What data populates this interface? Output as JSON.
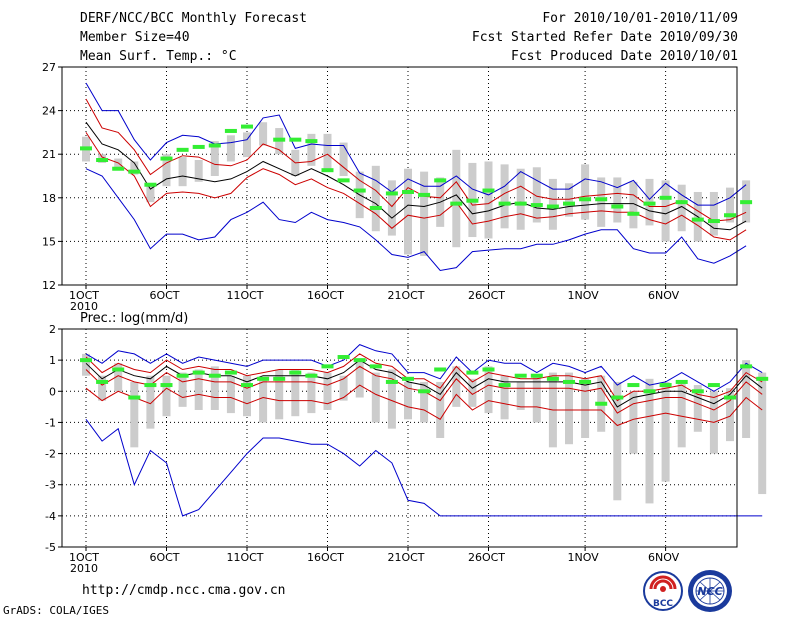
{
  "header": {
    "title": "DERF/NCC/BCC Monthly Forecast",
    "member_size": "Member Size=40",
    "variable": "Mean Surf. Temp.: °C",
    "period": "For 2010/10/01-2010/11/09",
    "started": "Fcst Started Refer Date 2010/09/30",
    "produced": "Fcst Produced Date 2010/10/01"
  },
  "footer": {
    "url": "http://cmdp.ncc.cma.gov.cn",
    "credit": "GrADS: COLA/IGES",
    "logo1_text": "BCC",
    "logo2_text": "NCC"
  },
  "colors": {
    "max_min": "#0000cc",
    "spread": "#cc0000",
    "mean": "#000000",
    "box": "#cccccc",
    "obs": "#33ee33"
  },
  "chart_data": [
    {
      "type": "line",
      "title": "Mean Surf. Temp.: °C",
      "x_days": 40,
      "xtick_labels": [
        "1OCT",
        "6OCT",
        "11OCT",
        "16OCT",
        "21OCT",
        "26OCT",
        "1NOV",
        "6NOV"
      ],
      "xtick_days": [
        1,
        6,
        11,
        16,
        21,
        26,
        32,
        37
      ],
      "x_sublabel": "2010",
      "ylim": [
        12,
        27
      ],
      "yticks": [
        12,
        15,
        18,
        21,
        24,
        27
      ],
      "max": [
        25.9,
        24.0,
        24.0,
        22.0,
        20.6,
        21.8,
        22.3,
        22.2,
        21.7,
        21.8,
        22.0,
        23.5,
        23.7,
        21.4,
        21.7,
        21.6,
        21.6,
        19.7,
        19.2,
        18.4,
        19.3,
        18.8,
        18.8,
        19.5,
        18.6,
        18.2,
        18.8,
        19.8,
        19.2,
        18.6,
        18.6,
        19.3,
        19.1,
        18.7,
        19.2,
        17.9,
        19.0,
        18.2,
        17.5,
        17.5,
        18.0,
        18.9
      ],
      "upper": [
        24.8,
        22.8,
        22.5,
        21.3,
        19.6,
        20.4,
        20.9,
        20.8,
        20.3,
        20.2,
        20.6,
        21.7,
        21.3,
        20.4,
        20.5,
        21.0,
        20.1,
        19.2,
        18.5,
        17.4,
        18.7,
        18.1,
        18.0,
        19.1,
        17.5,
        17.6,
        18.3,
        18.8,
        18.1,
        17.9,
        17.9,
        18.1,
        18.2,
        18.3,
        18.2,
        17.4,
        17.4,
        17.8,
        17.1,
        16.4,
        16.5,
        17.0
      ],
      "mean": [
        23.2,
        21.7,
        21.3,
        20.4,
        18.6,
        19.3,
        19.5,
        19.3,
        19.1,
        19.3,
        19.8,
        20.5,
        20.0,
        19.5,
        20.0,
        19.5,
        18.9,
        18.2,
        17.6,
        16.6,
        17.5,
        17.4,
        17.7,
        18.2,
        16.9,
        17.1,
        17.5,
        17.7,
        17.3,
        17.2,
        17.4,
        17.5,
        17.6,
        17.6,
        17.6,
        17.1,
        16.9,
        17.4,
        16.7,
        15.9,
        15.8,
        16.4
      ],
      "lower": [
        22.5,
        20.8,
        20.4,
        19.5,
        17.4,
        18.3,
        18.4,
        18.3,
        18.0,
        18.3,
        19.4,
        20.0,
        19.6,
        18.9,
        19.3,
        18.7,
        18.3,
        17.6,
        16.9,
        15.9,
        16.8,
        16.6,
        16.8,
        17.7,
        16.2,
        16.4,
        16.7,
        16.9,
        16.6,
        16.7,
        16.9,
        17.0,
        17.1,
        17.0,
        17.0,
        16.5,
        16.2,
        16.8,
        16.1,
        15.3,
        15.1,
        15.8
      ],
      "min": [
        20.0,
        19.5,
        18.0,
        16.5,
        14.5,
        15.5,
        15.5,
        15.1,
        15.3,
        16.5,
        17.0,
        17.7,
        16.5,
        16.3,
        17.0,
        16.5,
        16.3,
        16.0,
        15.1,
        14.1,
        13.9,
        14.3,
        13.0,
        13.2,
        14.3,
        14.4,
        14.5,
        14.5,
        14.8,
        14.8,
        15.1,
        15.5,
        15.8,
        15.8,
        14.5,
        14.2,
        14.2,
        15.3,
        13.8,
        13.5,
        14.0,
        14.7
      ],
      "box_high": [
        22.2,
        21.0,
        20.7,
        20.5,
        19.0,
        21.0,
        20.8,
        20.6,
        21.9,
        22.3,
        22.5,
        23.2,
        22.8,
        21.3,
        22.4,
        22.4,
        21.8,
        19.8,
        20.2,
        19.2,
        20.0,
        19.8,
        19.4,
        21.3,
        20.4,
        20.5,
        20.3,
        20.0,
        20.1,
        19.3,
        19.0,
        20.3,
        19.4,
        19.4,
        19.1,
        19.3,
        19.2,
        18.9,
        18.4,
        18.4,
        18.7,
        19.2
      ],
      "box_low": [
        20.5,
        20.4,
        20.0,
        19.6,
        17.7,
        18.8,
        18.8,
        19.1,
        19.5,
        20.5,
        20.8,
        21.6,
        21.0,
        19.5,
        20.2,
        19.9,
        19.5,
        16.6,
        15.7,
        15.4,
        14.1,
        14.0,
        16.0,
        14.6,
        15.3,
        15.2,
        15.9,
        15.8,
        16.3,
        15.8,
        16.7,
        16.5,
        16.0,
        16.3,
        15.9,
        16.1,
        15.0,
        15.7,
        15.0,
        15.4,
        16.3,
        16.3
      ],
      "obs": [
        21.4,
        20.6,
        20.0,
        19.8,
        18.9,
        20.7,
        21.3,
        21.5,
        21.6,
        22.6,
        22.9,
        null,
        22.0,
        22.0,
        21.9,
        19.9,
        19.2,
        18.5,
        17.3,
        18.3,
        18.4,
        18.2,
        19.2,
        17.6,
        17.8,
        18.5,
        17.6,
        17.6,
        17.5,
        17.4,
        17.6,
        17.9,
        17.9,
        17.4,
        16.9,
        17.6,
        18.0,
        17.7,
        16.5,
        16.4,
        16.8,
        17.7
      ]
    },
    {
      "type": "line",
      "title": "Prec.: log(mm/d)",
      "x_days": 40,
      "xtick_labels": [
        "1OCT",
        "6OCT",
        "11OCT",
        "16OCT",
        "21OCT",
        "26OCT",
        "1NOV",
        "6NOV"
      ],
      "xtick_days": [
        1,
        6,
        11,
        16,
        21,
        26,
        32,
        37
      ],
      "x_sublabel": "2010",
      "ylim": [
        -5,
        2
      ],
      "yticks": [
        -5,
        -4,
        -3,
        -2,
        -1,
        0,
        1,
        2
      ],
      "max": [
        1.2,
        0.9,
        1.3,
        1.2,
        0.9,
        1.2,
        0.9,
        1.1,
        1.0,
        0.9,
        0.8,
        1.0,
        1.0,
        1.0,
        1.0,
        0.8,
        1.0,
        1.5,
        1.3,
        1.2,
        0.6,
        0.6,
        0.4,
        1.1,
        0.6,
        1.0,
        0.9,
        0.9,
        0.6,
        0.9,
        0.8,
        0.6,
        0.8,
        0.2,
        0.5,
        0.2,
        0.3,
        0.6,
        0.3,
        0.0,
        0.3,
        0.9,
        0.6
      ],
      "upper": [
        1.1,
        0.6,
        0.9,
        0.7,
        0.6,
        1.0,
        0.7,
        0.8,
        0.7,
        0.7,
        0.5,
        0.6,
        0.7,
        0.7,
        0.7,
        0.6,
        0.8,
        1.2,
        0.9,
        0.8,
        0.4,
        0.4,
        0.1,
        0.8,
        0.3,
        0.6,
        0.5,
        0.4,
        0.4,
        0.5,
        0.5,
        0.4,
        0.5,
        -0.3,
        0.0,
        0.0,
        0.1,
        0.2,
        -0.1,
        -0.2,
        0.0,
        0.6,
        0.3
      ],
      "mean": [
        0.9,
        0.4,
        0.7,
        0.5,
        0.4,
        0.8,
        0.5,
        0.6,
        0.5,
        0.5,
        0.3,
        0.5,
        0.5,
        0.5,
        0.5,
        0.4,
        0.6,
        1.0,
        0.7,
        0.6,
        0.3,
        0.2,
        -0.1,
        0.6,
        0.1,
        0.4,
        0.3,
        0.3,
        0.3,
        0.3,
        0.3,
        0.2,
        0.3,
        -0.5,
        -0.2,
        -0.1,
        0.0,
        0.0,
        -0.2,
        -0.4,
        -0.1,
        0.5,
        0.1
      ],
      "lower": [
        0.7,
        0.2,
        0.5,
        0.3,
        0.2,
        0.6,
        0.3,
        0.4,
        0.3,
        0.3,
        0.1,
        0.3,
        0.3,
        0.3,
        0.3,
        0.2,
        0.4,
        0.8,
        0.5,
        0.4,
        0.1,
        0.0,
        -0.3,
        0.4,
        -0.1,
        0.2,
        0.1,
        0.1,
        0.1,
        0.1,
        0.1,
        0.0,
        0.1,
        -0.7,
        -0.4,
        -0.3,
        -0.2,
        -0.2,
        -0.4,
        -0.6,
        -0.3,
        0.3,
        -0.1
      ],
      "spread_low": [
        0.1,
        -0.3,
        0.0,
        -0.2,
        -0.4,
        0.1,
        -0.2,
        -0.1,
        -0.2,
        -0.2,
        -0.4,
        -0.2,
        -0.3,
        -0.3,
        -0.3,
        -0.4,
        -0.2,
        0.2,
        -0.1,
        -0.3,
        -0.5,
        -0.6,
        -0.9,
        -0.1,
        -0.6,
        -0.3,
        -0.4,
        -0.5,
        -0.5,
        -0.6,
        -0.6,
        -0.6,
        -0.6,
        -1.1,
        -0.9,
        -0.8,
        -0.7,
        -0.8,
        -0.9,
        -1.0,
        -0.8,
        -0.2,
        -0.6
      ],
      "min": [
        -0.9,
        -1.6,
        -1.2,
        -3.0,
        -1.9,
        -2.3,
        -4.0,
        -3.8,
        -3.2,
        -2.6,
        -2.0,
        -1.5,
        -1.5,
        -1.6,
        -1.7,
        -1.7,
        -2.0,
        -2.4,
        -1.9,
        -2.3,
        -3.5,
        -3.6,
        -4.0,
        -4.0,
        -4.0,
        -4.0,
        -4.0,
        -4.0,
        -4.0,
        -4.0,
        -4.0,
        -4.0,
        -4.0,
        -4.0,
        -4.0,
        -4.0,
        -4.0,
        -4.0,
        -4.0,
        -4.0,
        -4.0,
        -4.0,
        -4.0
      ],
      "box_high": [
        1.2,
        0.5,
        0.9,
        0.3,
        0.5,
        0.5,
        0.6,
        0.7,
        0.8,
        0.5,
        0.5,
        0.4,
        0.7,
        0.7,
        0.6,
        0.6,
        0.5,
        1.0,
        0.6,
        0.7,
        0.3,
        0.3,
        0.3,
        0.8,
        0.4,
        0.8,
        0.5,
        0.3,
        0.5,
        0.6,
        0.6,
        0.4,
        0.5,
        0.3,
        0.0,
        0.4,
        0.3,
        0.3,
        0.2,
        0.0,
        0.1,
        1.0,
        0.6
      ],
      "box_low": [
        0.5,
        -0.3,
        0.0,
        -1.8,
        -1.2,
        -0.8,
        -0.5,
        -0.6,
        -0.6,
        -0.7,
        -0.8,
        -1.0,
        -0.9,
        -0.8,
        -0.7,
        -0.6,
        -0.3,
        -0.2,
        -1.0,
        -1.2,
        -0.9,
        -1.0,
        -1.5,
        -0.5,
        -0.5,
        -0.7,
        -0.9,
        -0.6,
        -1.0,
        -1.8,
        -1.7,
        -1.5,
        -1.3,
        -3.5,
        -2.0,
        -3.6,
        -2.9,
        -1.8,
        -1.3,
        -2.0,
        -1.6,
        -1.5,
        -3.3
      ],
      "obs": [
        1.0,
        0.3,
        0.7,
        -0.2,
        0.2,
        0.2,
        0.5,
        0.6,
        0.5,
        0.6,
        0.2,
        0.4,
        0.4,
        0.6,
        0.5,
        0.8,
        1.1,
        1.0,
        0.8,
        0.3,
        0.4,
        0.0,
        0.7,
        null,
        0.6,
        0.7,
        0.2,
        0.5,
        0.5,
        0.4,
        0.3,
        0.3,
        -0.4,
        -0.2,
        0.2,
        0.0,
        0.2,
        0.3,
        0.0,
        0.2,
        -0.2,
        0.8,
        0.4
      ]
    }
  ]
}
